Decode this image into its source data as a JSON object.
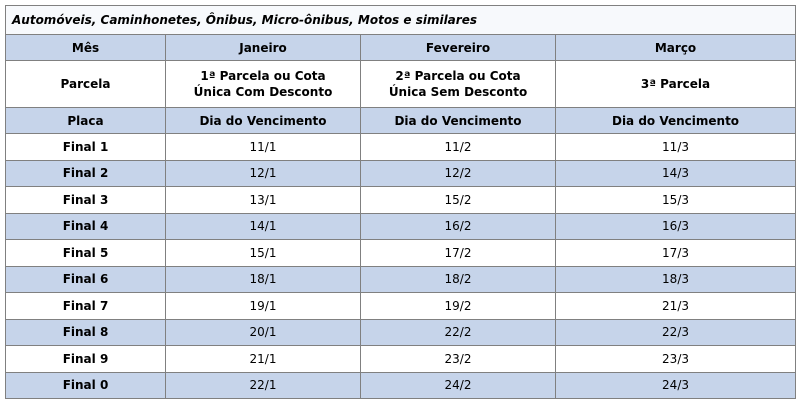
{
  "title": "Automóveis, Caminhonetes, Ônibus, Micro-ônibus, Motos e similares",
  "header": [
    [
      "Mês",
      "Janeiro",
      "Fevereiro",
      "Março"
    ],
    [
      "Parcela",
      "1ª Parcela ou Cota\nÚnica Com Desconto",
      "2ª Parcela ou Cota\nÚnica Sem Desconto",
      "3ª Parcela"
    ],
    [
      "Placa",
      "Dia do Vencimento",
      "Dia do Vencimento",
      "Dia do Vencimento"
    ]
  ],
  "rows": [
    [
      "Final 1",
      "11/1",
      "11/2",
      "11/3"
    ],
    [
      "Final 2",
      "12/1",
      "12/2",
      "14/3"
    ],
    [
      "Final 3",
      "13/1",
      "15/2",
      "15/3"
    ],
    [
      "Final 4",
      "14/1",
      "16/2",
      "16/3"
    ],
    [
      "Final 5",
      "15/1",
      "17/2",
      "17/3"
    ],
    [
      "Final 6",
      "18/1",
      "18/2",
      "18/3"
    ],
    [
      "Final 7",
      "19/1",
      "19/2",
      "21/3"
    ],
    [
      "Final 8",
      "20/1",
      "22/2",
      "22/3"
    ],
    [
      "Final 9",
      "21/1",
      "23/2",
      "23/3"
    ],
    [
      "Final 0",
      "22/1",
      "24/2",
      "24/3"
    ]
  ]
}
